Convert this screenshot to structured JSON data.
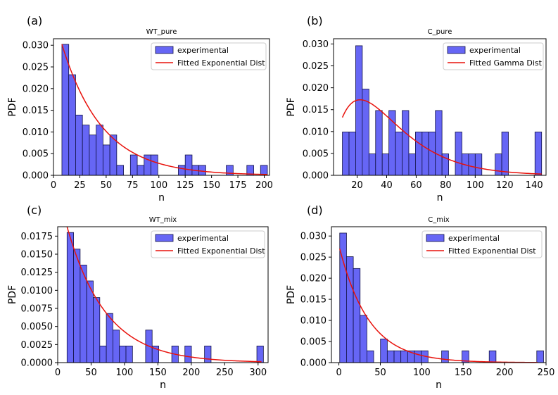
{
  "chart_data": [
    {
      "type": "bar",
      "panel_label": "(a)",
      "title": "WT_pure",
      "xlabel": "n",
      "ylabel": "PDF",
      "xlim": [
        0,
        205
      ],
      "ylim": [
        0,
        0.0315
      ],
      "xticks": [
        0,
        25,
        50,
        75,
        100,
        125,
        150,
        175,
        200
      ],
      "yticks": [
        0.0,
        0.005,
        0.01,
        0.015,
        0.02,
        0.025,
        0.03
      ],
      "ytick_labels": [
        "0.000",
        "0.005",
        "0.010",
        "0.015",
        "0.020",
        "0.025",
        "0.030"
      ],
      "bin_start": 8,
      "bin_width": 6.5,
      "values": [
        0.0302,
        0.0232,
        0.0139,
        0.0116,
        0.0093,
        0.0116,
        0.007,
        0.0093,
        0.0023,
        0,
        0.0047,
        0.0023,
        0.0047,
        0.0047,
        0,
        0,
        0,
        0.0023,
        0.0047,
        0.0023,
        0.0023,
        0,
        0,
        0,
        0.0023,
        0,
        0,
        0.0023,
        0,
        0.0023
      ],
      "fit": {
        "kind": "exponential",
        "x_start": 8,
        "x_end": 203,
        "A": 0.0302,
        "k": 0.026
      },
      "legend": [
        "experimental",
        "Fitted Exponential Dist"
      ]
    },
    {
      "type": "bar",
      "panel_label": "(b)",
      "title": "C_pure",
      "xlabel": "n",
      "ylabel": "PDF",
      "xlim": [
        4,
        148
      ],
      "ylim": [
        0,
        0.0312
      ],
      "xticks": [
        20,
        40,
        60,
        80,
        100,
        120,
        140
      ],
      "yticks": [
        0.0,
        0.005,
        0.01,
        0.015,
        0.02,
        0.025,
        0.03
      ],
      "ytick_labels": [
        "0.000",
        "0.005",
        "0.010",
        "0.015",
        "0.020",
        "0.025",
        "0.030"
      ],
      "bin_start": 10,
      "bin_width": 4.5,
      "values": [
        0.0099,
        0.0099,
        0.0296,
        0.0197,
        0.0049,
        0.0148,
        0.0049,
        0.0148,
        0.0099,
        0.0148,
        0.0049,
        0.0099,
        0.0099,
        0.0099,
        0.0148,
        0.0049,
        0,
        0.0099,
        0.0049,
        0.0049,
        0.0049,
        0,
        0,
        0.0049,
        0.0099,
        0,
        0,
        0,
        0,
        0.0099
      ],
      "fit": {
        "kind": "gamma",
        "x_start": 10,
        "x_end": 145,
        "C": 0.00173,
        "shape": 2.1,
        "scale": 20
      },
      "legend": [
        "experimental",
        "Fitted Gamma Dist"
      ]
    },
    {
      "type": "bar",
      "panel_label": "(c)",
      "title": "WT_mix",
      "xlabel": "n",
      "ylabel": "PDF",
      "xlim": [
        0,
        315
      ],
      "ylim": [
        0,
        0.0188
      ],
      "xticks": [
        0,
        50,
        100,
        150,
        200,
        250,
        300
      ],
      "yticks": [
        0.0,
        0.0025,
        0.005,
        0.0075,
        0.01,
        0.0125,
        0.015,
        0.0175
      ],
      "ytick_labels": [
        "0.0000",
        "0.0025",
        "0.0050",
        "0.0075",
        "0.0100",
        "0.0125",
        "0.0150",
        "0.0175"
      ],
      "bin_start": 14,
      "bin_width": 9.8,
      "values": [
        0.018,
        0.0157,
        0.0135,
        0.0113,
        0.009,
        0.0023,
        0.0068,
        0.0045,
        0.0023,
        0.0023,
        0,
        0,
        0.0045,
        0.0023,
        0,
        0,
        0.0023,
        0,
        0.0023,
        0,
        0,
        0.0023,
        0,
        0,
        0,
        0,
        0,
        0,
        0,
        0.0023
      ],
      "fit": {
        "kind": "exponential",
        "x_start": 14,
        "x_end": 305,
        "A": 0.0188,
        "k": 0.0172
      },
      "legend": [
        "experimental",
        "Fitted Exponential Dist"
      ]
    },
    {
      "type": "bar",
      "panel_label": "(d)",
      "title": "C_mix",
      "xlabel": "n",
      "ylabel": "PDF",
      "xlim": [
        -9,
        250
      ],
      "ylim": [
        0,
        0.0322
      ],
      "xticks": [
        0,
        50,
        100,
        150,
        200,
        250
      ],
      "yticks": [
        0.0,
        0.005,
        0.01,
        0.015,
        0.02,
        0.025,
        0.03
      ],
      "ytick_labels": [
        "0.000",
        "0.005",
        "0.010",
        "0.015",
        "0.020",
        "0.025",
        "0.030"
      ],
      "bin_start": 1,
      "bin_width": 8.2,
      "values": [
        0.0307,
        0.0251,
        0.0223,
        0.0112,
        0.0028,
        0,
        0.0056,
        0.0028,
        0.0028,
        0.0028,
        0.0028,
        0.0028,
        0.0028,
        0,
        0,
        0.0028,
        0,
        0,
        0.0028,
        0,
        0,
        0,
        0.0028,
        0,
        0,
        0,
        0,
        0,
        0,
        0.0028
      ],
      "fit": {
        "kind": "exponential",
        "x_start": 1,
        "x_end": 240,
        "A": 0.027,
        "k": 0.028
      },
      "legend": [
        "experimental",
        "Fitted Exponential Dist"
      ]
    }
  ]
}
